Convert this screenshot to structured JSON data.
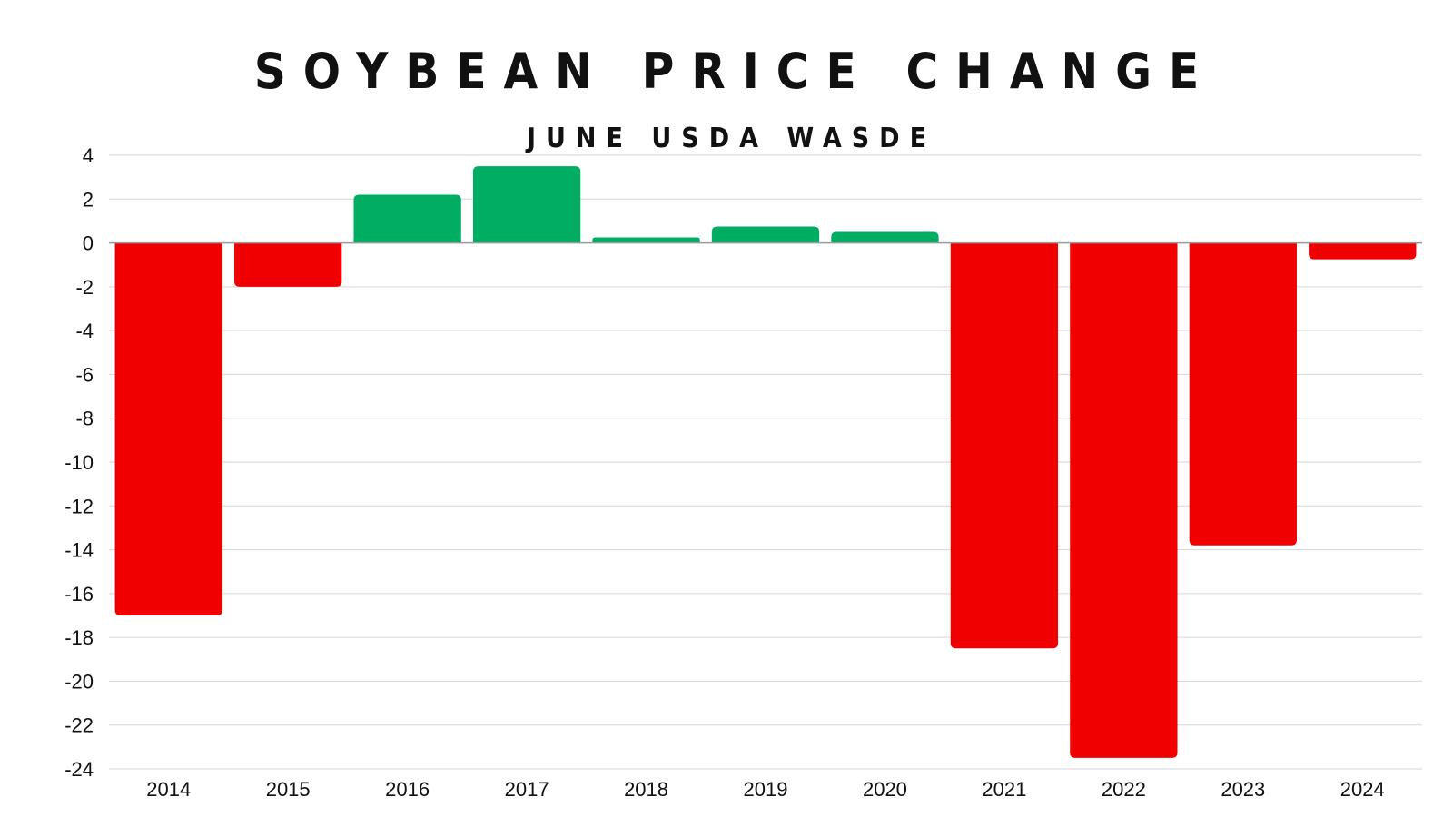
{
  "chart_data": {
    "type": "bar",
    "title": "SOYBEAN PRICE CHANGE",
    "subtitle": "JUNE USDA WASDE",
    "xlabel": "",
    "ylabel": "",
    "ylim": [
      -24,
      4
    ],
    "yticks": [
      4,
      2,
      0,
      -2,
      -4,
      -6,
      -8,
      -10,
      -12,
      -14,
      -16,
      -18,
      -20,
      -22,
      -24
    ],
    "grid": true,
    "categories": [
      "2014",
      "2015",
      "2016",
      "2017",
      "2018",
      "2019",
      "2020",
      "2021",
      "2022",
      "2023",
      "2024"
    ],
    "values": [
      -17.0,
      -2.0,
      2.2,
      3.5,
      0.25,
      0.75,
      0.5,
      -18.5,
      -23.5,
      -13.8,
      -0.75
    ],
    "colors": {
      "positive": "#00ad63",
      "negative": "#f00000",
      "grid": "#d6d6d6",
      "zero_line": "#9a9a9a"
    }
  }
}
